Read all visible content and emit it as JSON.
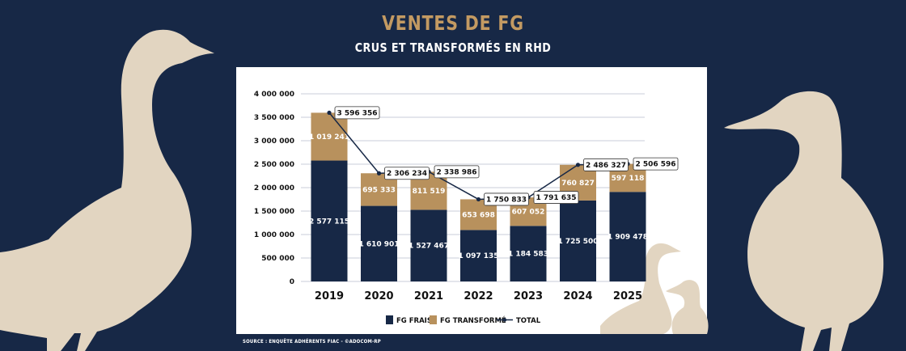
{
  "header": {
    "title": "VENTES DE FG",
    "subtitle": "CRUS ET TRANSFORMÉS EN RHD"
  },
  "footer": {
    "source": "SOURCE : ENQUÊTE ADHÉRENTS FIAC - ©ADOCOM-RP"
  },
  "colors": {
    "background": "#172846",
    "fg_frais": "#172846",
    "fg_transforme": "#b8915d",
    "total_line": "#172846",
    "title": "#c39a62",
    "silhouette": "#e2d5c1"
  },
  "chart_data": {
    "type": "bar",
    "stacked": true,
    "title": "VENTES DE FG",
    "subtitle": "CRUS ET TRANSFORMÉS EN RHD",
    "xlabel": "",
    "ylabel": "",
    "categories": [
      "2019",
      "2020",
      "2021",
      "2022",
      "2023",
      "2024",
      "2025"
    ],
    "series": [
      {
        "name": "FG FRAIS",
        "values": [
          2577115,
          1610901,
          1527467,
          1097135,
          1184583,
          1725500,
          1909478
        ]
      },
      {
        "name": "FG TRANSFORMÉ",
        "values": [
          1019241,
          695333,
          811519,
          653698,
          607052,
          760827,
          597118
        ]
      },
      {
        "name": "TOTAL",
        "type": "line",
        "values": [
          3596356,
          2306234,
          2338986,
          1750833,
          1791635,
          2486327,
          2506596
        ]
      }
    ],
    "value_labels": {
      "FG FRAIS": [
        "2 577 115",
        "1 610 901",
        "1 527 467",
        "1 097 135",
        "1 184 583",
        "1 725 500",
        "1 909 478"
      ],
      "FG TRANSFORMÉ": [
        "1 019 241",
        "695 333",
        "811 519",
        "653 698",
        "607 052",
        "760 827",
        "597 118"
      ],
      "TOTAL": [
        "3 596 356",
        "2 306 234",
        "2 338 986",
        "1 750 833",
        "1 791 635",
        "2 486 327",
        "2 506 596"
      ]
    },
    "ylim": [
      0,
      4000000
    ],
    "yticks": [
      0,
      500000,
      1000000,
      1500000,
      2000000,
      2500000,
      3000000,
      3500000,
      4000000
    ],
    "ytick_labels": [
      "0",
      "500 000",
      "1 000 000",
      "1 500 000",
      "2 000 000",
      "2 500 000",
      "3 000 000",
      "3 500 000",
      "4 000 000"
    ],
    "grid": true,
    "legend": {
      "position": "bottom",
      "entries": [
        "FG FRAIS",
        "FG TRANSFORMÉ",
        "TOTAL"
      ]
    }
  }
}
